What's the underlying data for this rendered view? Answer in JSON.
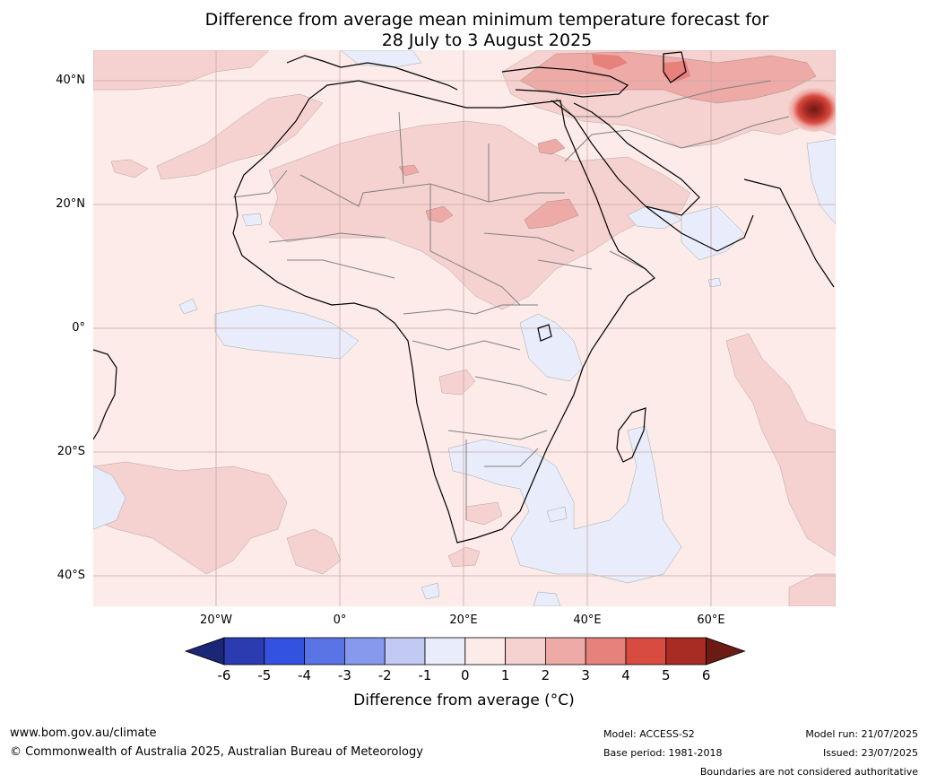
{
  "title": {
    "line1": "Difference from average mean minimum temperature forecast for",
    "line2": "28 July to 3 August 2025"
  },
  "map": {
    "region": "Africa, Middle East and western Indian Ocean",
    "lat_labels": [
      "40°N",
      "20°N",
      "0°",
      "20°S",
      "40°S"
    ],
    "lon_labels": [
      "20°W",
      "0°",
      "20°E",
      "40°E",
      "60°E"
    ],
    "background_anomaly_class": "0 to 1",
    "features": [
      {
        "name": "warm anomaly",
        "location": "north-western India / Pakistan",
        "max_class": "6 or more"
      },
      {
        "name": "warm anomaly",
        "location": "Turkey / Caspian region",
        "class": "2 to 3"
      },
      {
        "name": "cool anomaly",
        "location": "south-east Africa and adjacent Indian Ocean",
        "class": "-1 to 0"
      },
      {
        "name": "cool anomaly",
        "location": "equatorial Atlantic",
        "class": "-1 to 0"
      }
    ]
  },
  "colorbar": {
    "ticks": [
      "-6",
      "-5",
      "-4",
      "-3",
      "-2",
      "-1",
      "0",
      "1",
      "2",
      "3",
      "4",
      "5",
      "6"
    ],
    "colors": [
      "#1a2676",
      "#2a3caf",
      "#3452e0",
      "#5a74e6",
      "#8799ec",
      "#c2c9f3",
      "#e9ecfb",
      "#fcebe8",
      "#f5d2cf",
      "#eeaaa6",
      "#e6817b",
      "#d84b40",
      "#a92c24",
      "#6b1a14"
    ],
    "label": "Difference from average ($^\\circ$C)",
    "label_display": "Difference from average (°C)"
  },
  "footer": {
    "website": "www.bom.gov.au/climate",
    "copyright": "© Commonwealth of Australia 2025, Australian Bureau of Meteorology",
    "model": "Model: ACCESS-S2",
    "base_period": "Base period: 1981-2018",
    "model_run": "Model run: 21/07/2025",
    "issued": "Issued: 23/07/2025",
    "disclaimer": "Boundaries are not considered authoritative"
  }
}
